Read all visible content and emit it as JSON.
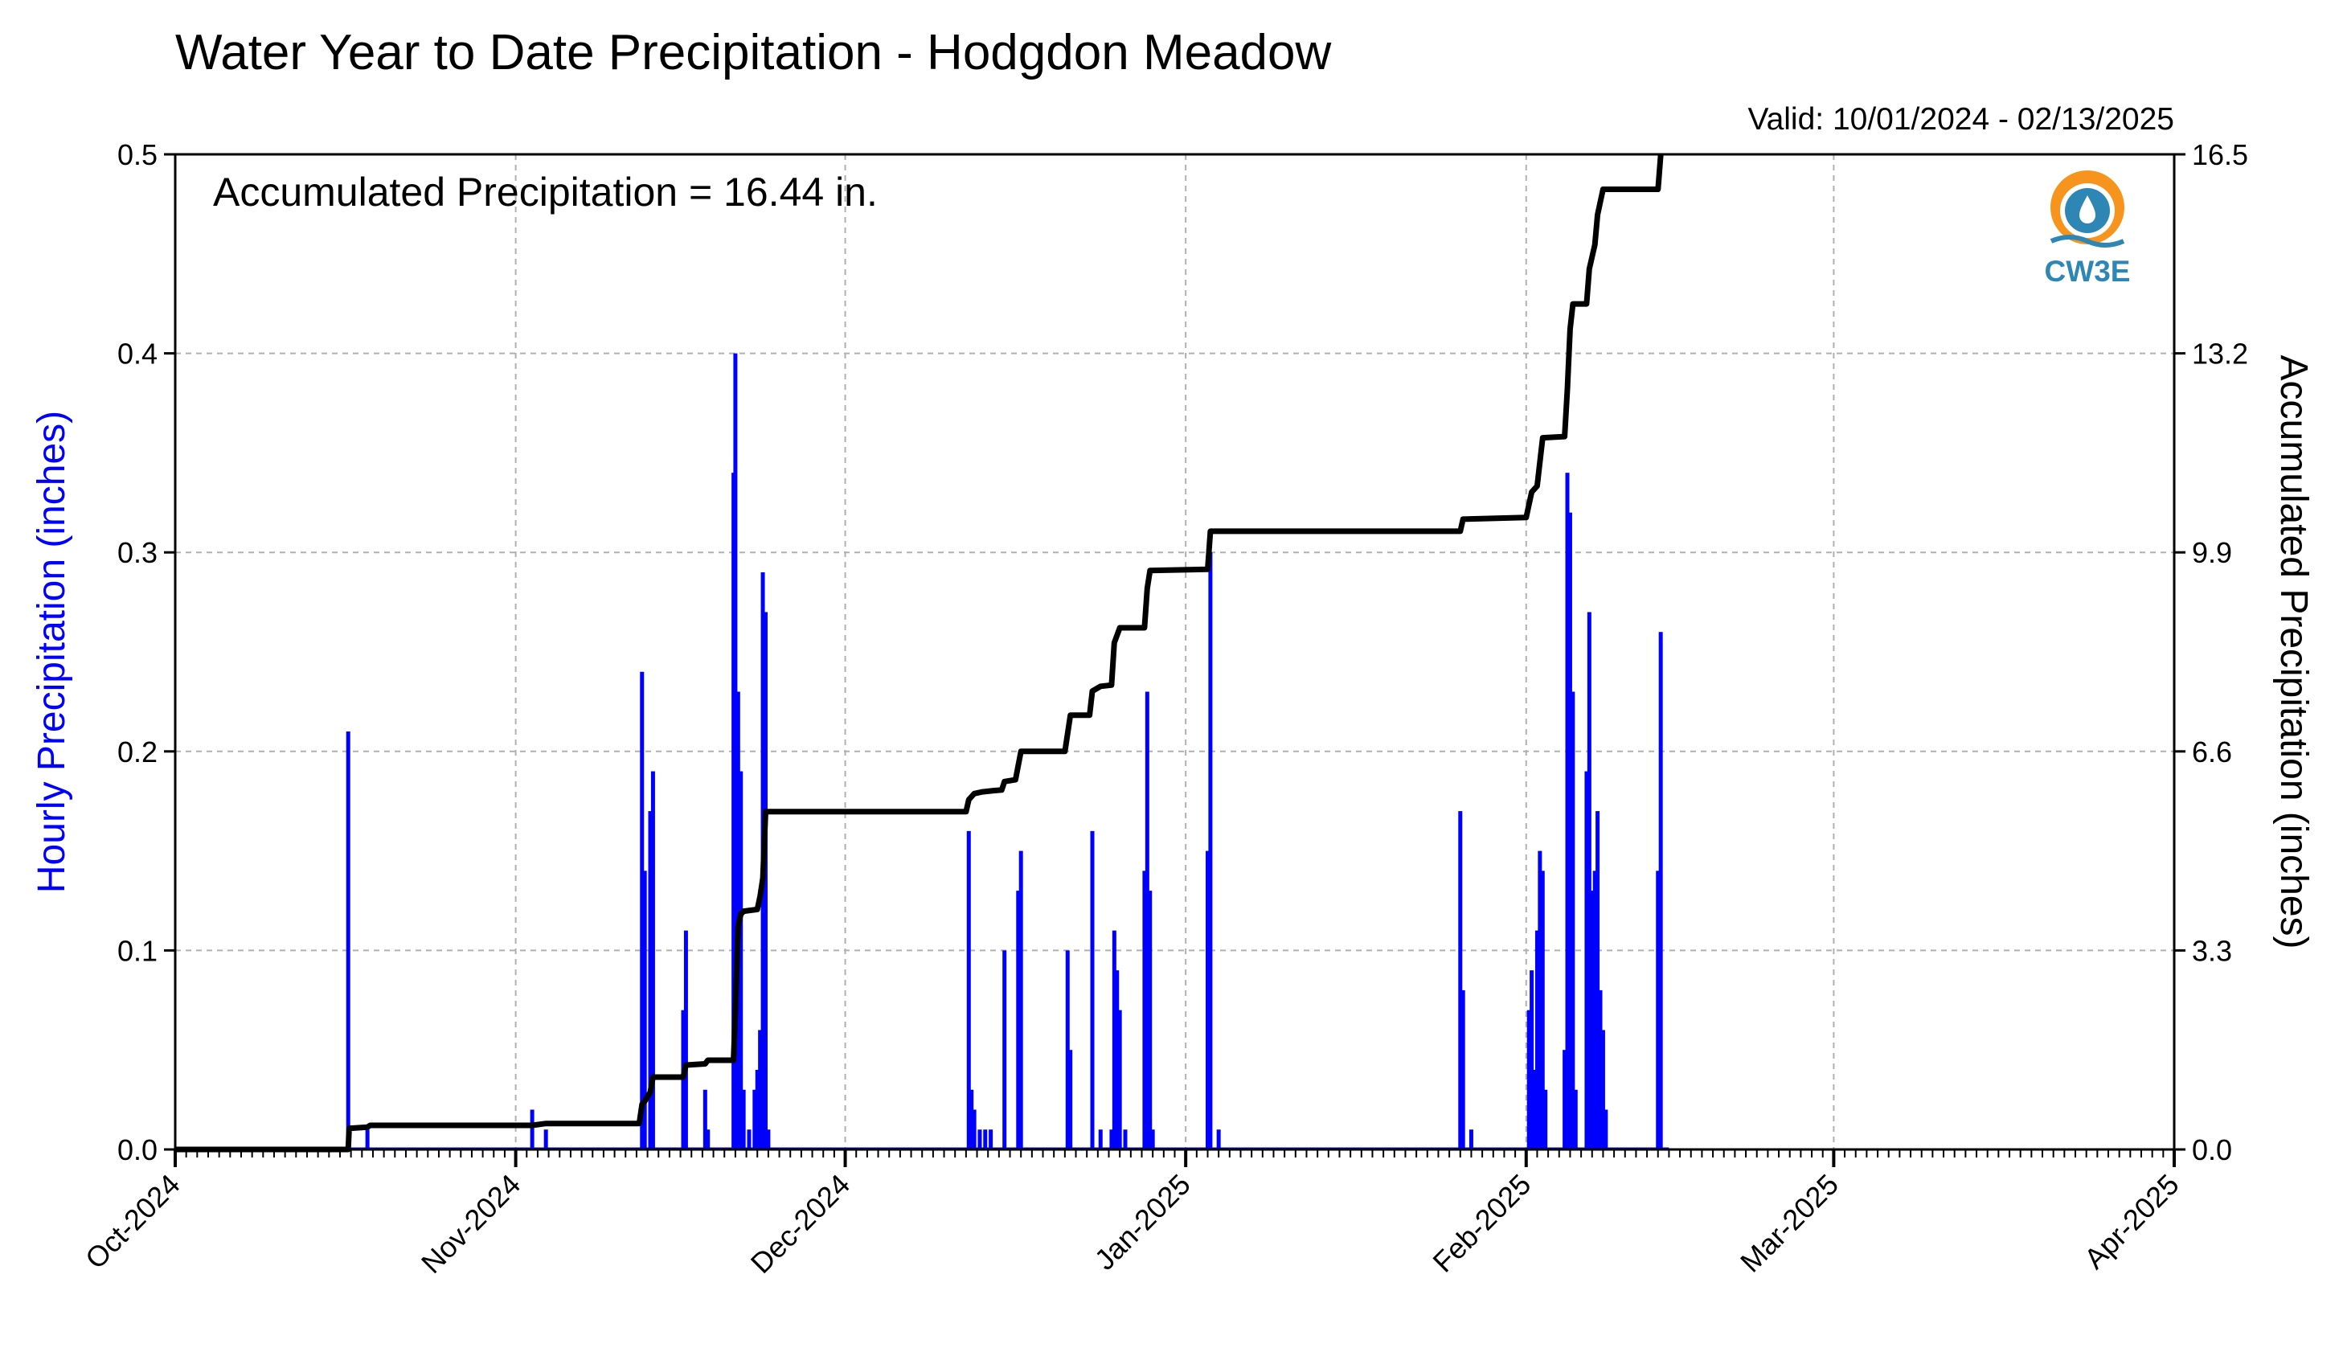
{
  "chart_data": {
    "type": "bar",
    "title": "Water Year to Date Precipitation - Hodgdon Meadow",
    "subtitle": "Valid: 10/01/2024 - 02/13/2025",
    "annotation": "Accumulated Precipitation = 16.44 in.",
    "logo_text": "CW3E",
    "ylabel_left": "Hourly Precipitation (inches)",
    "ylabel_right": "Accumulated Precipitation (inches)",
    "ylim_left": [
      0,
      0.5
    ],
    "ylim_right": [
      0,
      16.5
    ],
    "yticks_left": [
      "0.0",
      "0.1",
      "0.2",
      "0.3",
      "0.4",
      "0.5"
    ],
    "yticks_right": [
      "0.0",
      "3.3",
      "6.6",
      "9.9",
      "13.2",
      "16.5"
    ],
    "x_tick_labels": [
      "Oct-2024",
      "Nov-2024",
      "Dec-2024",
      "Jan-2025",
      "Feb-2025",
      "Mar-2025",
      "Apr-2025"
    ],
    "x_tick_dates": [
      "2024-10-01",
      "2024-11-01",
      "2024-12-01",
      "2025-01-01",
      "2025-02-01",
      "2025-03-01",
      "2025-04-01"
    ],
    "xlim": [
      "2024-10-01",
      "2025-04-01"
    ],
    "grid": true,
    "colors": {
      "hourly": "#0000ff",
      "accumulated": "#000000",
      "grid": "#b0b0b0"
    },
    "series": [
      {
        "name": "Hourly Precipitation (inches)",
        "type": "bar",
        "points": [
          [
            "2024-10-16 18:00",
            0.21
          ],
          [
            "2024-10-18 12:00",
            0.01
          ],
          [
            "2024-11-02 12:00",
            0.02
          ],
          [
            "2024-11-03 18:00",
            0.01
          ],
          [
            "2024-11-12 12:00",
            0.24
          ],
          [
            "2024-11-12 18:00",
            0.14
          ],
          [
            "2024-11-13 06:00",
            0.17
          ],
          [
            "2024-11-13 12:00",
            0.19
          ],
          [
            "2024-11-16 06:00",
            0.07
          ],
          [
            "2024-11-16 12:00",
            0.11
          ],
          [
            "2024-11-18 06:00",
            0.03
          ],
          [
            "2024-11-18 12:00",
            0.01
          ],
          [
            "2024-11-20 20:00",
            0.34
          ],
          [
            "2024-11-21 00:00",
            0.4
          ],
          [
            "2024-11-21 06:00",
            0.23
          ],
          [
            "2024-11-21 12:00",
            0.19
          ],
          [
            "2024-11-21 18:00",
            0.03
          ],
          [
            "2024-11-22 06:00",
            0.01
          ],
          [
            "2024-11-22 18:00",
            0.03
          ],
          [
            "2024-11-23 00:00",
            0.04
          ],
          [
            "2024-11-23 06:00",
            0.06
          ],
          [
            "2024-11-23 12:00",
            0.29
          ],
          [
            "2024-11-23 18:00",
            0.27
          ],
          [
            "2024-11-24 00:00",
            0.01
          ],
          [
            "2024-12-12 06:00",
            0.16
          ],
          [
            "2024-12-12 12:00",
            0.03
          ],
          [
            "2024-12-12 18:00",
            0.02
          ],
          [
            "2024-12-13 06:00",
            0.01
          ],
          [
            "2024-12-13 18:00",
            0.01
          ],
          [
            "2024-12-14 06:00",
            0.01
          ],
          [
            "2024-12-15 12:00",
            0.1
          ],
          [
            "2024-12-16 18:00",
            0.13
          ],
          [
            "2024-12-17 00:00",
            0.15
          ],
          [
            "2024-12-21 06:00",
            0.1
          ],
          [
            "2024-12-21 12:00",
            0.05
          ],
          [
            "2024-12-23 12:00",
            0.16
          ],
          [
            "2024-12-24 06:00",
            0.01
          ],
          [
            "2024-12-25 06:00",
            0.01
          ],
          [
            "2024-12-25 12:00",
            0.11
          ],
          [
            "2024-12-25 18:00",
            0.09
          ],
          [
            "2024-12-26 00:00",
            0.07
          ],
          [
            "2024-12-26 12:00",
            0.01
          ],
          [
            "2024-12-28 06:00",
            0.14
          ],
          [
            "2024-12-28 12:00",
            0.23
          ],
          [
            "2024-12-28 18:00",
            0.13
          ],
          [
            "2024-12-29 00:00",
            0.01
          ],
          [
            "2025-01-03 00:00",
            0.15
          ],
          [
            "2025-01-03 06:00",
            0.3
          ],
          [
            "2025-01-04 00:00",
            0.01
          ],
          [
            "2025-01-26 00:00",
            0.17
          ],
          [
            "2025-01-26 06:00",
            0.08
          ],
          [
            "2025-01-27 00:00",
            0.01
          ],
          [
            "2025-02-01 06:00",
            0.07
          ],
          [
            "2025-02-01 12:00",
            0.09
          ],
          [
            "2025-02-01 18:00",
            0.04
          ],
          [
            "2025-02-02 00:00",
            0.11
          ],
          [
            "2025-02-02 06:00",
            0.15
          ],
          [
            "2025-02-02 12:00",
            0.14
          ],
          [
            "2025-02-02 18:00",
            0.03
          ],
          [
            "2025-02-04 12:00",
            0.05
          ],
          [
            "2025-02-04 18:00",
            0.34
          ],
          [
            "2025-02-05 00:00",
            0.32
          ],
          [
            "2025-02-05 06:00",
            0.23
          ],
          [
            "2025-02-05 12:00",
            0.03
          ],
          [
            "2025-02-06 12:00",
            0.19
          ],
          [
            "2025-02-06 18:00",
            0.27
          ],
          [
            "2025-02-07 00:00",
            0.13
          ],
          [
            "2025-02-07 06:00",
            0.14
          ],
          [
            "2025-02-07 12:00",
            0.17
          ],
          [
            "2025-02-07 18:00",
            0.08
          ],
          [
            "2025-02-08 00:00",
            0.06
          ],
          [
            "2025-02-08 06:00",
            0.02
          ],
          [
            "2025-02-13 00:00",
            0.14
          ],
          [
            "2025-02-13 06:00",
            0.26
          ]
        ]
      },
      {
        "name": "Accumulated Precipitation (inches)",
        "type": "line",
        "points": [
          [
            "2024-10-01 00:00",
            0.0
          ],
          [
            "2024-10-16 18:00",
            0.0
          ],
          [
            "2024-10-16 20:00",
            0.35
          ],
          [
            "2024-10-18 12:00",
            0.37
          ],
          [
            "2024-10-18 18:00",
            0.4
          ],
          [
            "2024-11-02 12:00",
            0.4
          ],
          [
            "2024-11-03 18:00",
            0.43
          ],
          [
            "2024-11-12 06:00",
            0.43
          ],
          [
            "2024-11-12 12:00",
            0.75
          ],
          [
            "2024-11-12 18:00",
            0.8
          ],
          [
            "2024-11-13 06:00",
            0.95
          ],
          [
            "2024-11-13 12:00",
            1.2
          ],
          [
            "2024-11-16 06:00",
            1.2
          ],
          [
            "2024-11-16 12:00",
            1.4
          ],
          [
            "2024-11-18 06:00",
            1.42
          ],
          [
            "2024-11-18 12:00",
            1.48
          ],
          [
            "2024-11-20 20:00",
            1.48
          ],
          [
            "2024-11-21 00:00",
            2.3
          ],
          [
            "2024-11-21 06:00",
            3.7
          ],
          [
            "2024-11-21 12:00",
            3.9
          ],
          [
            "2024-11-21 18:00",
            3.95
          ],
          [
            "2024-11-23 00:00",
            3.98
          ],
          [
            "2024-11-23 06:00",
            4.2
          ],
          [
            "2024-11-23 12:00",
            4.5
          ],
          [
            "2024-11-23 18:00",
            5.6
          ],
          [
            "2024-12-12 00:00",
            5.6
          ],
          [
            "2024-12-12 06:00",
            5.8
          ],
          [
            "2024-12-12 18:00",
            5.9
          ],
          [
            "2024-12-13 12:00",
            5.93
          ],
          [
            "2024-12-14 12:00",
            5.95
          ],
          [
            "2024-12-15 06:00",
            5.96
          ],
          [
            "2024-12-15 12:00",
            6.1
          ],
          [
            "2024-12-16 12:00",
            6.13
          ],
          [
            "2024-12-17 00:00",
            6.6
          ],
          [
            "2024-12-21 00:00",
            6.6
          ],
          [
            "2024-12-21 12:00",
            7.2
          ],
          [
            "2024-12-23 06:00",
            7.2
          ],
          [
            "2024-12-23 12:00",
            7.6
          ],
          [
            "2024-12-24 06:00",
            7.68
          ],
          [
            "2024-12-25 06:00",
            7.7
          ],
          [
            "2024-12-25 12:00",
            8.4
          ],
          [
            "2024-12-26 00:00",
            8.65
          ],
          [
            "2024-12-28 06:00",
            8.65
          ],
          [
            "2024-12-28 12:00",
            9.3
          ],
          [
            "2024-12-28 18:00",
            9.6
          ],
          [
            "2025-01-03 00:00",
            9.62
          ],
          [
            "2025-01-03 06:00",
            10.25
          ],
          [
            "2025-01-26 00:00",
            10.25
          ],
          [
            "2025-01-26 06:00",
            10.45
          ],
          [
            "2025-02-01 00:00",
            10.48
          ],
          [
            "2025-02-01 12:00",
            10.9
          ],
          [
            "2025-02-02 00:00",
            11.0
          ],
          [
            "2025-02-02 12:00",
            11.8
          ],
          [
            "2025-02-04 12:00",
            11.82
          ],
          [
            "2025-02-04 18:00",
            12.6
          ],
          [
            "2025-02-05 00:00",
            13.6
          ],
          [
            "2025-02-05 06:00",
            14.02
          ],
          [
            "2025-02-06 12:00",
            14.02
          ],
          [
            "2025-02-06 18:00",
            14.6
          ],
          [
            "2025-02-07 06:00",
            15.0
          ],
          [
            "2025-02-07 12:00",
            15.5
          ],
          [
            "2025-02-08 00:00",
            15.92
          ],
          [
            "2025-02-13 00:00",
            15.92
          ],
          [
            "2025-02-13 06:00",
            16.5
          ]
        ]
      }
    ]
  }
}
